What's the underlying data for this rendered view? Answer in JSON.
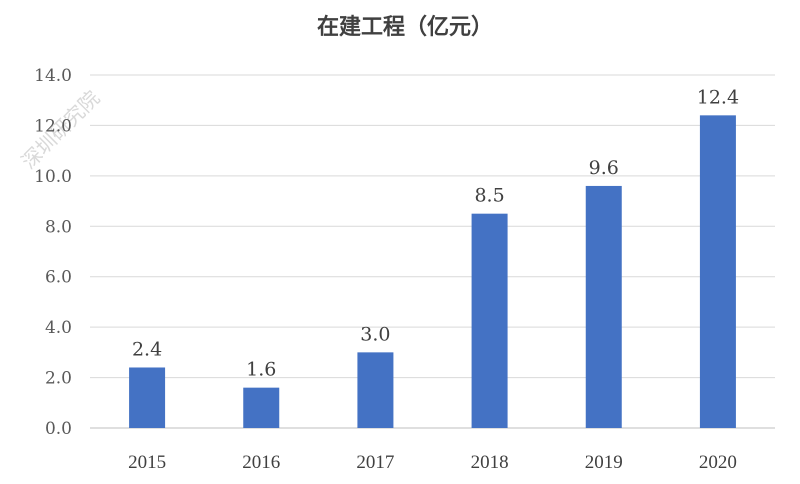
{
  "watermark": "深圳研究院",
  "chart_data": {
    "type": "bar",
    "title": "在建工程（亿元）",
    "categories": [
      "2015",
      "2016",
      "2017",
      "2018",
      "2019",
      "2020"
    ],
    "values": [
      2.4,
      1.6,
      3.0,
      8.5,
      9.6,
      12.4
    ],
    "value_labels": [
      "2.4",
      "1.6",
      "3.0",
      "8.5",
      "9.6",
      "12.4"
    ],
    "yticks": [
      "0.0",
      "2.0",
      "4.0",
      "6.0",
      "8.0",
      "10.0",
      "12.0",
      "14.0"
    ],
    "ylim": [
      0,
      14
    ],
    "grid": true,
    "bar_color": "#4472c4"
  }
}
